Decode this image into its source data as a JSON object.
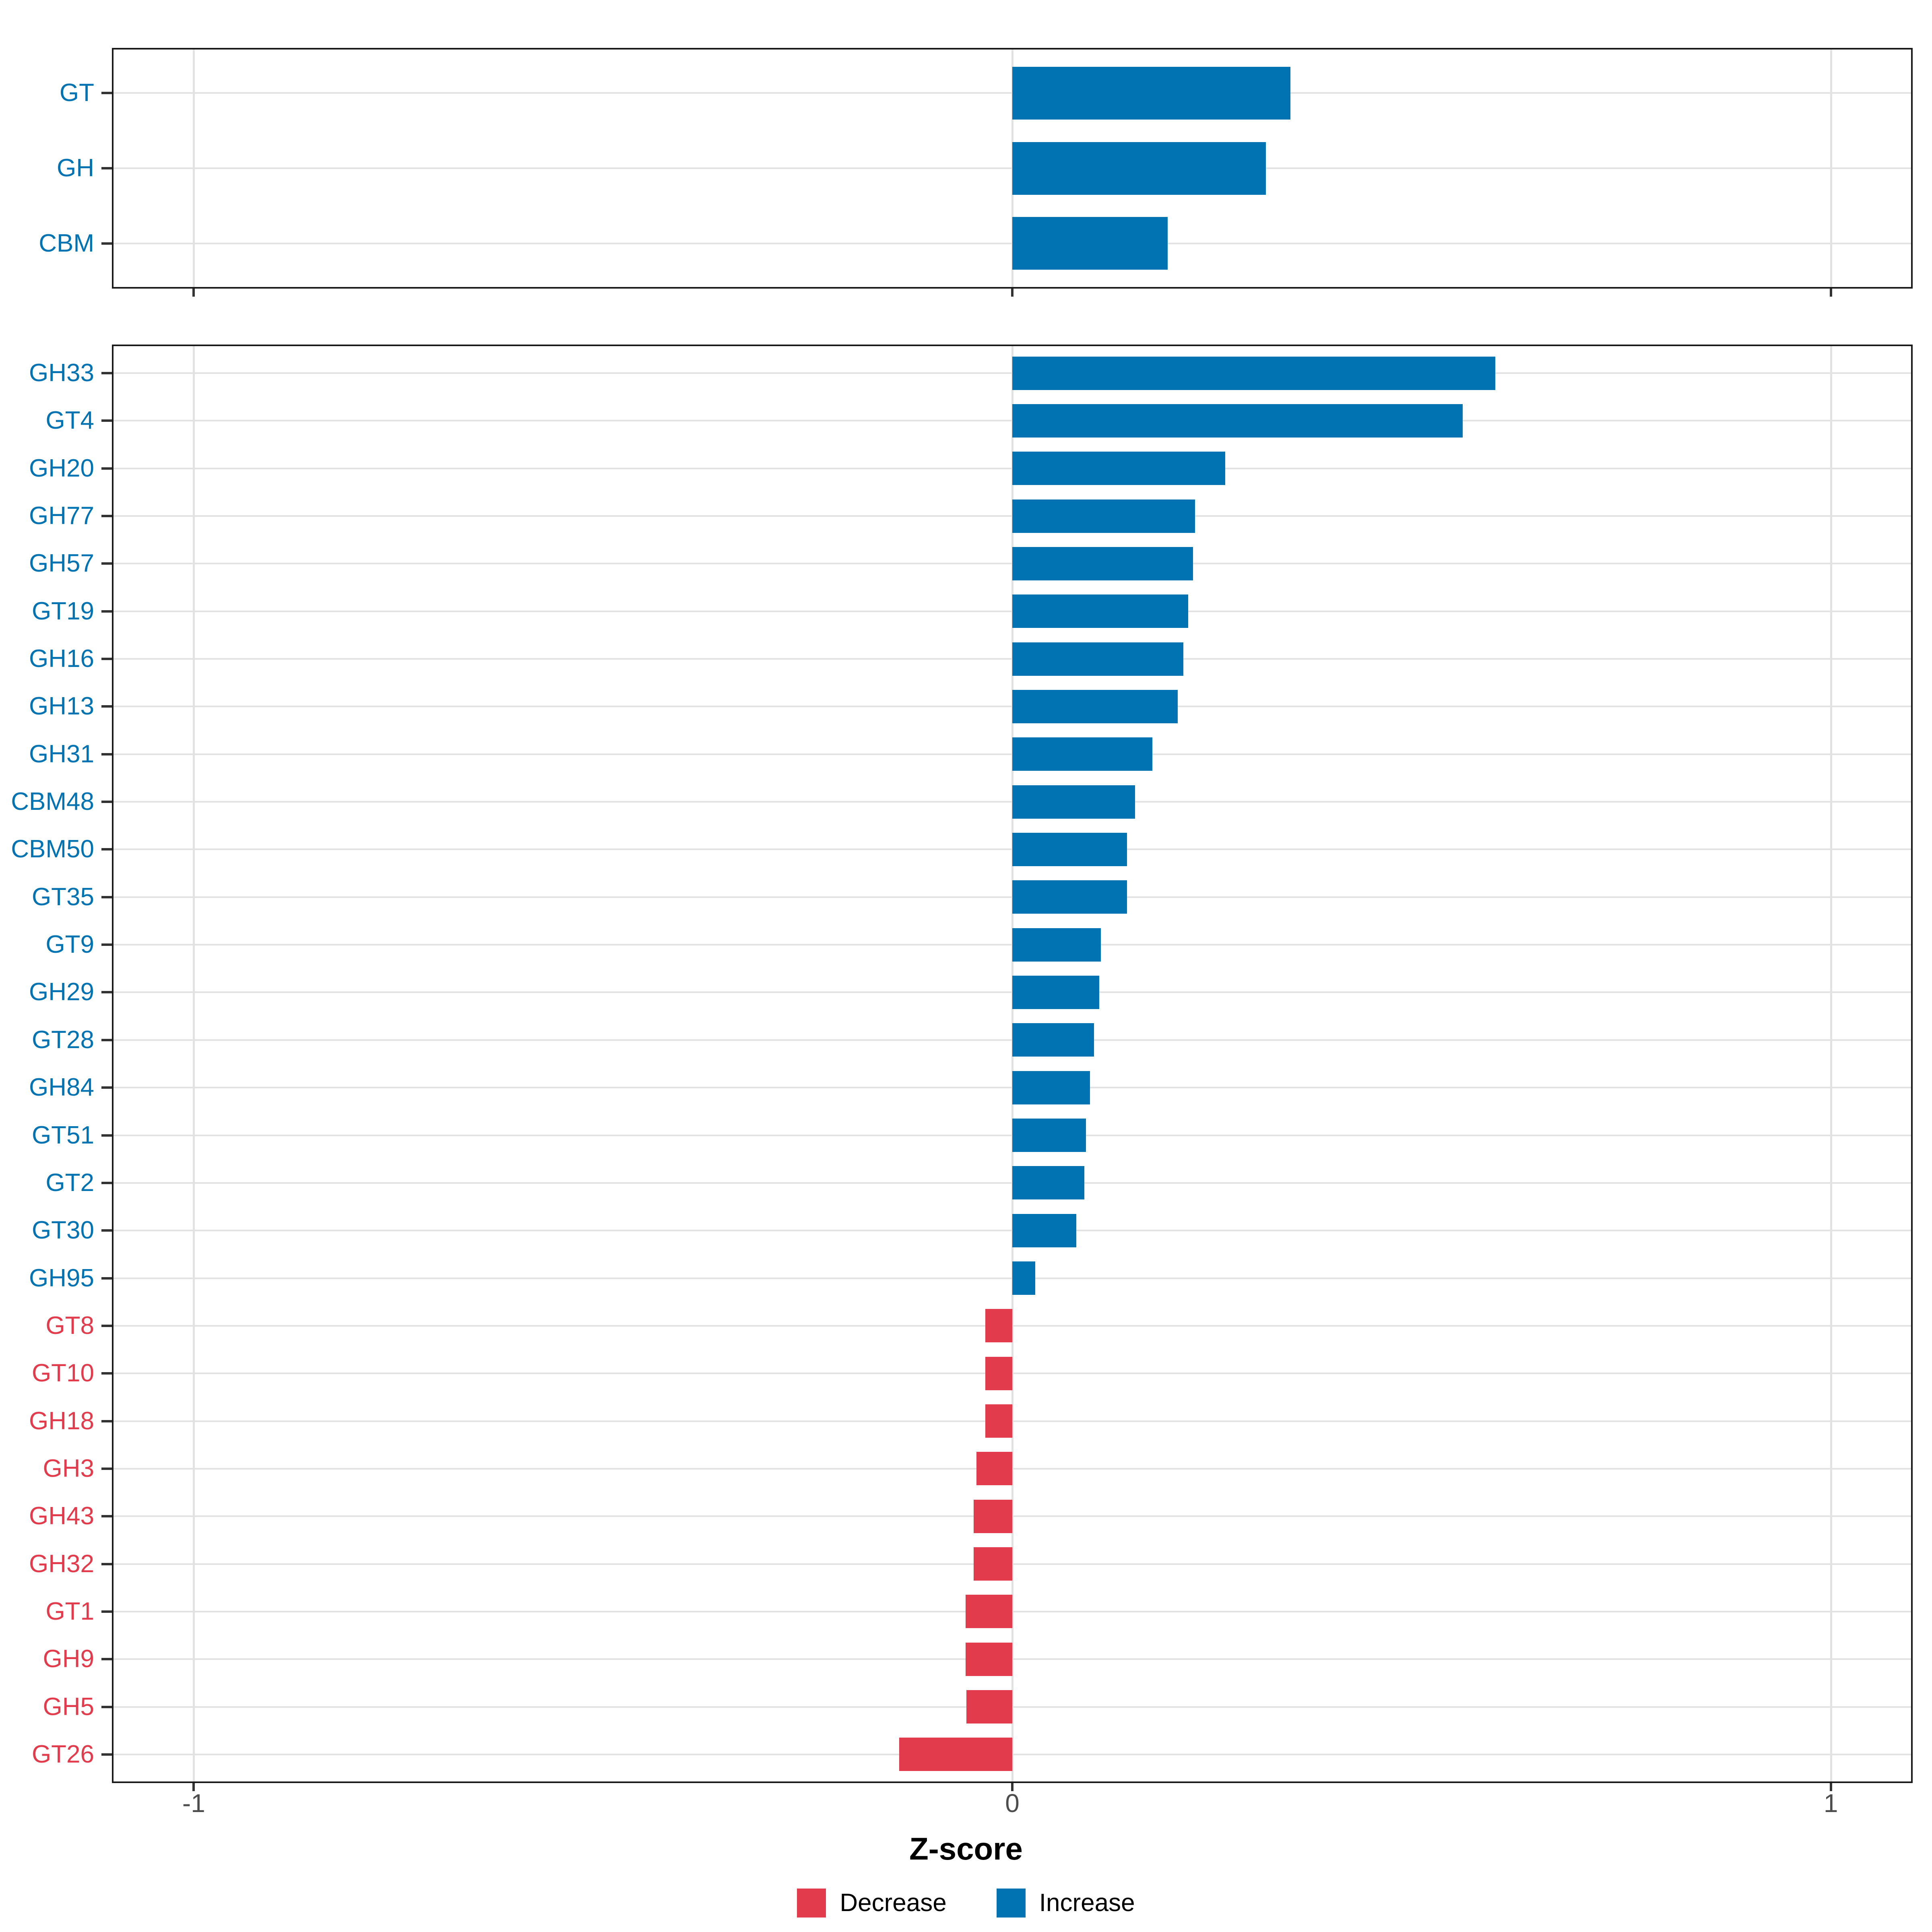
{
  "figure": {
    "background": "#ffffff"
  },
  "colors": {
    "increase": "#0273b2",
    "decrease": "#e23b4c",
    "grid": "#e2e2e2",
    "panel_border": "#1a1a1a",
    "tick": "#333333",
    "tick_label": "#4d4d4d",
    "axis_title": "#000000"
  },
  "axis": {
    "title": "Z-score",
    "tick_values": [
      -1,
      0,
      1
    ],
    "tick_labels": [
      "-1",
      "0",
      "1"
    ]
  },
  "legend": {
    "items": [
      {
        "label": "Decrease",
        "color_key": "decrease"
      },
      {
        "label": "Increase",
        "color_key": "increase"
      }
    ]
  },
  "chart_data": [
    {
      "type": "bar",
      "orientation": "horizontal",
      "panel": "top",
      "title": "",
      "xlabel": "Z-score",
      "ylabel": "",
      "xlim": [
        -1.1,
        1.1
      ],
      "x_ticks": [
        -1,
        0,
        1
      ],
      "grid": true,
      "legend_position": "bottom",
      "categories": [
        "GT",
        "GH",
        "CBM"
      ],
      "values": [
        0.34,
        0.31,
        0.19
      ],
      "groups": [
        "Increase",
        "Increase",
        "Increase"
      ]
    },
    {
      "type": "bar",
      "orientation": "horizontal",
      "panel": "bottom",
      "title": "",
      "xlabel": "Z-score",
      "ylabel": "",
      "xlim": [
        -1.1,
        1.1
      ],
      "x_ticks": [
        -1,
        0,
        1
      ],
      "grid": true,
      "legend_position": "bottom",
      "categories": [
        "GH33",
        "GT4",
        "GH20",
        "GH77",
        "GH57",
        "GT19",
        "GH16",
        "GH13",
        "GH31",
        "CBM48",
        "CBM50",
        "GT35",
        "GT9",
        "GH29",
        "GT28",
        "GH84",
        "GT51",
        "GT2",
        "GT30",
        "GH95",
        "GT8",
        "GT10",
        "GH18",
        "GH3",
        "GH43",
        "GH32",
        "GT1",
        "GH9",
        "GH5",
        "GT26"
      ],
      "values": [
        0.59,
        0.55,
        0.26,
        0.223,
        0.221,
        0.215,
        0.209,
        0.202,
        0.171,
        0.15,
        0.14,
        0.14,
        0.108,
        0.106,
        0.1,
        0.095,
        0.09,
        0.088,
        0.078,
        0.028,
        -0.033,
        -0.033,
        -0.033,
        -0.044,
        -0.047,
        -0.047,
        -0.057,
        -0.057,
        -0.056,
        -0.138
      ],
      "groups": [
        "Increase",
        "Increase",
        "Increase",
        "Increase",
        "Increase",
        "Increase",
        "Increase",
        "Increase",
        "Increase",
        "Increase",
        "Increase",
        "Increase",
        "Increase",
        "Increase",
        "Increase",
        "Increase",
        "Increase",
        "Increase",
        "Increase",
        "Increase",
        "Decrease",
        "Decrease",
        "Decrease",
        "Decrease",
        "Decrease",
        "Decrease",
        "Decrease",
        "Decrease",
        "Decrease",
        "Decrease"
      ]
    }
  ]
}
